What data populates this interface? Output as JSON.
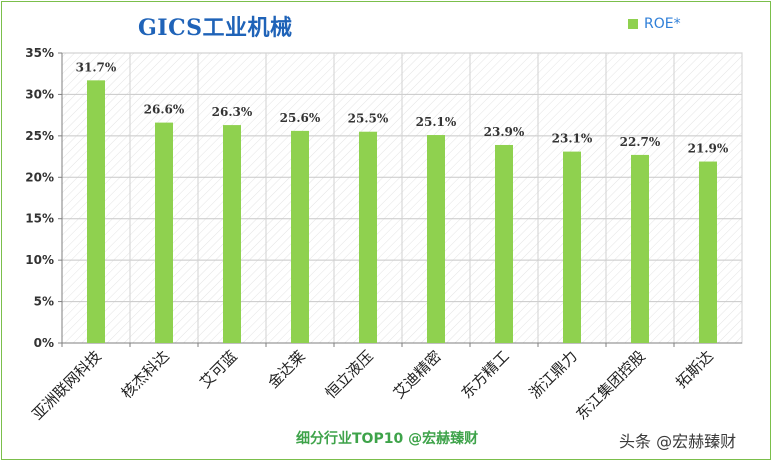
{
  "chart_data": {
    "type": "bar",
    "title": "GICS工业机械",
    "categories": [
      "亚洲联网科技",
      "核杰科达",
      "艾可蓝",
      "金达莱",
      "恒立液压",
      "艾迪精密",
      "东方精工",
      "浙江鼎力",
      "东江集团控股",
      "拓斯达"
    ],
    "series": [
      {
        "name": "ROE*",
        "values": [
          31.7,
          26.6,
          26.3,
          25.6,
          25.5,
          25.1,
          23.9,
          23.1,
          22.7,
          21.9
        ]
      }
    ],
    "data_labels": [
      "31.7%",
      "26.6%",
      "26.3%",
      "25.6%",
      "25.5%",
      "25.1%",
      "23.9%",
      "23.1%",
      "22.7%",
      "21.9%"
    ],
    "y_ticks": [
      "0%",
      "5%",
      "10%",
      "15%",
      "20%",
      "25%",
      "30%",
      "35%"
    ],
    "ylim": [
      0,
      35
    ],
    "grid": true,
    "legend_position": "top-right",
    "bar_color": "#8fd14f"
  },
  "footer": {
    "subtitle": "细分行业TOP10 @宏赫臻财",
    "watermark": "头条 @宏赫臻财"
  }
}
